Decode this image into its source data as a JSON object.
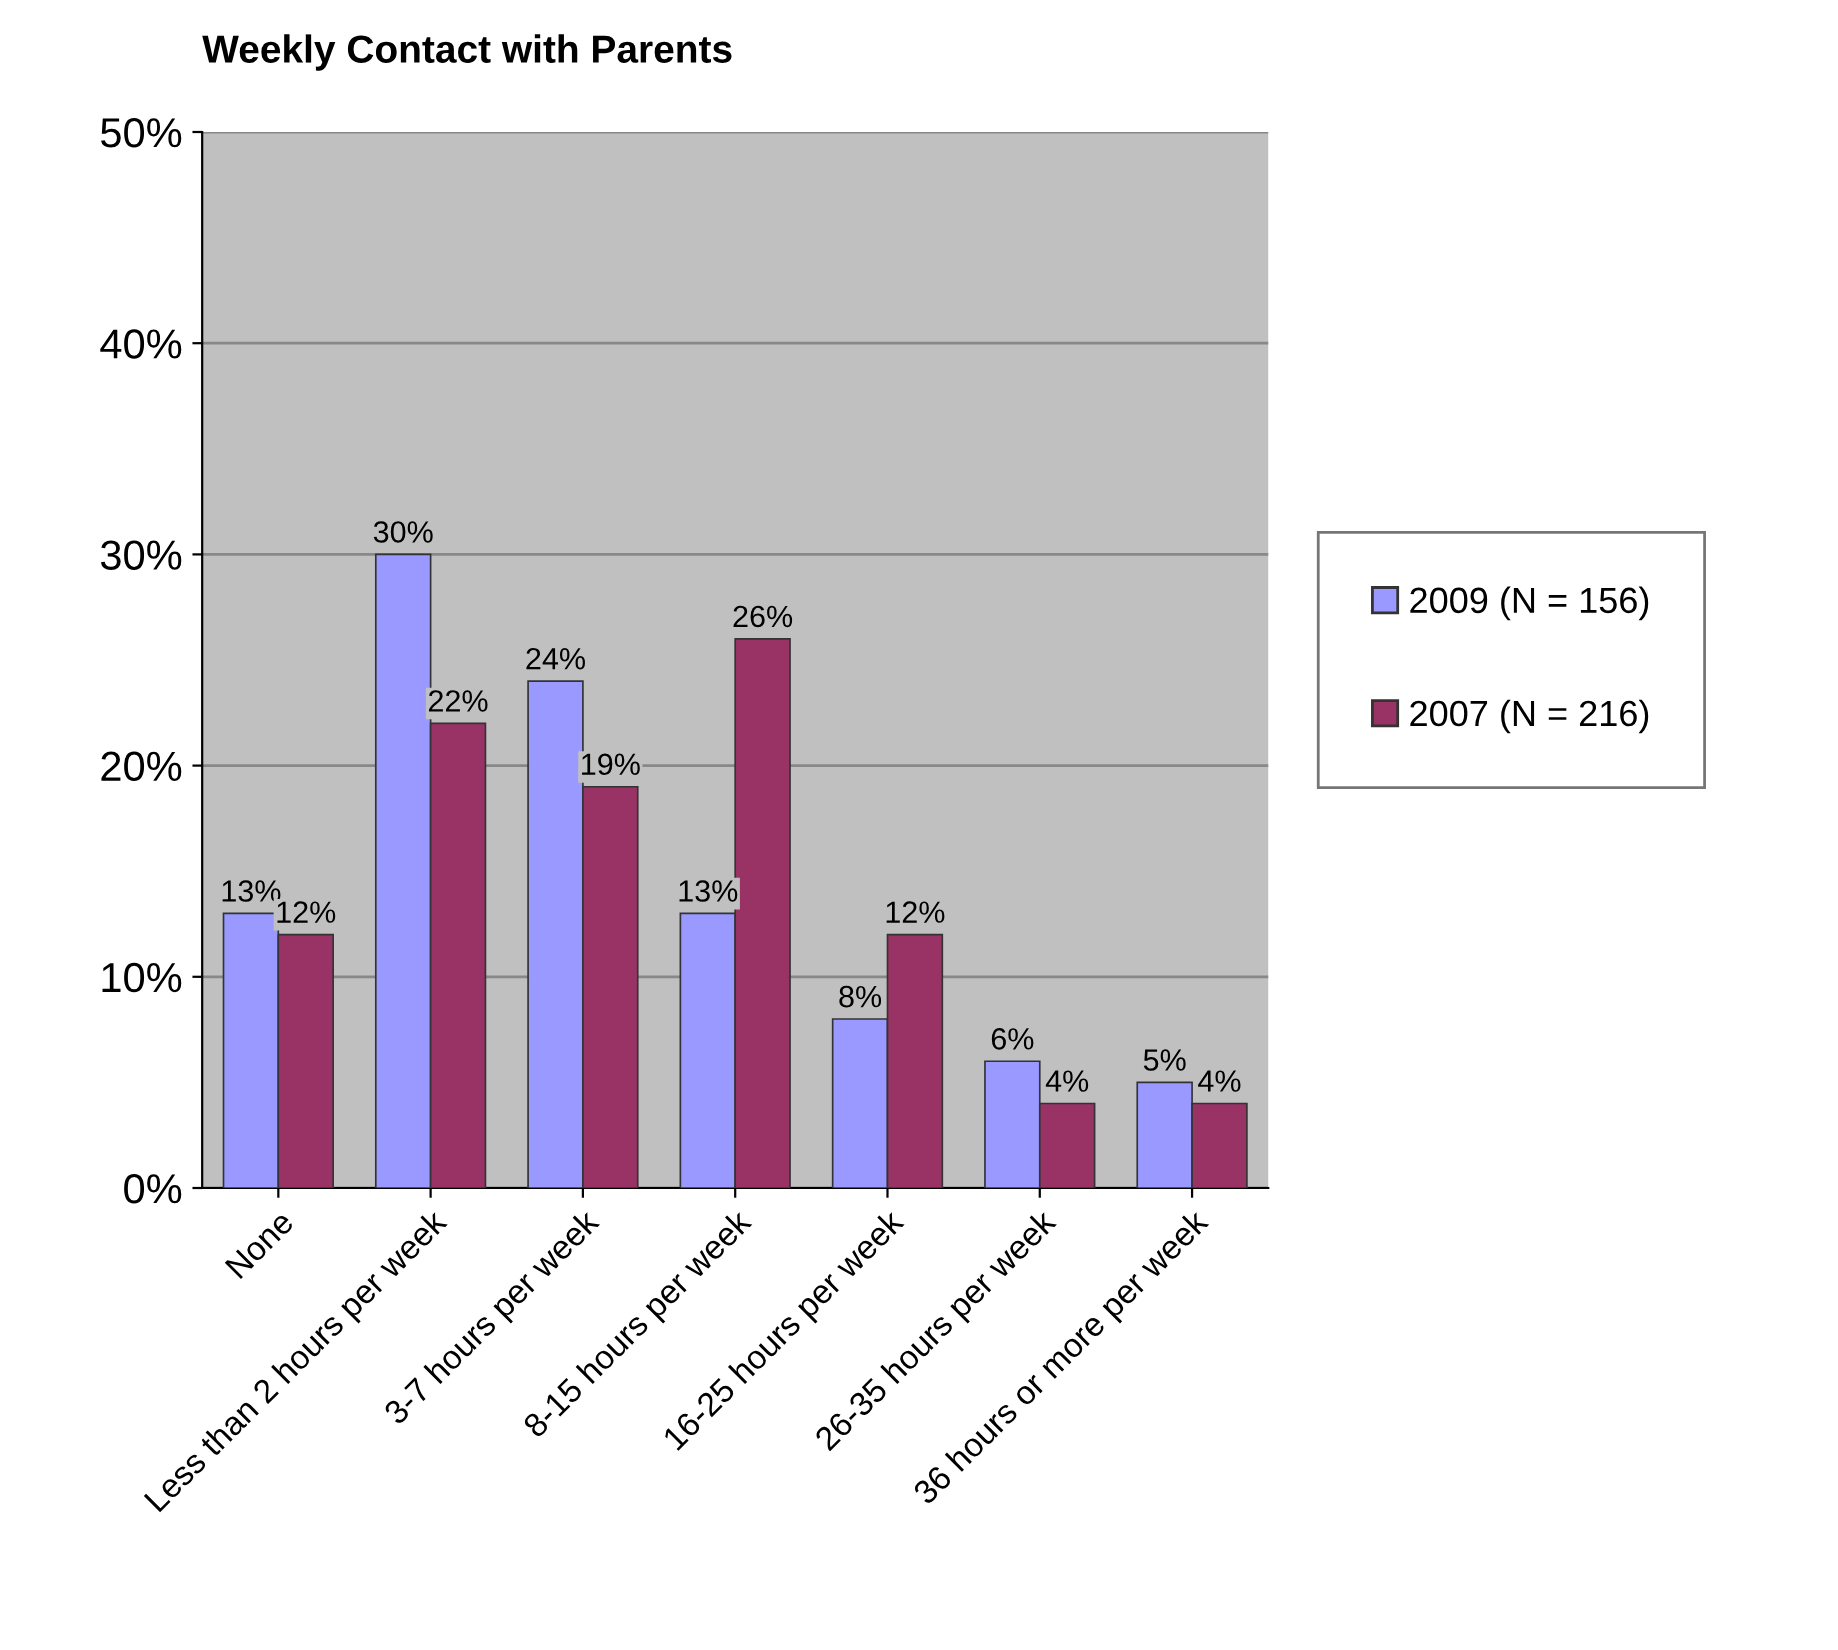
{
  "chart_data": {
    "type": "bar",
    "title": "Weekly Contact with Parents",
    "categories": [
      "None",
      "Less than 2 hours per week",
      "3-7 hours per week",
      "8-15 hours per week",
      "16-25 hours per week",
      "26-35 hours per week",
      "36 hours or more per week"
    ],
    "series": [
      {
        "name": "2009 (N = 156)",
        "color": "#9999ff",
        "values": [
          13,
          30,
          24,
          13,
          8,
          6,
          5
        ],
        "value_labels": [
          "13%",
          "30%",
          "24%",
          "13%",
          "8%",
          "6%",
          "5%"
        ]
      },
      {
        "name": "2007 (N = 216)",
        "color": "#993366",
        "values": [
          12,
          22,
          19,
          26,
          12,
          4,
          4
        ],
        "value_labels": [
          "12%",
          "22%",
          "19%",
          "26%",
          "12%",
          "4%",
          "4%"
        ]
      }
    ],
    "ylim": [
      0,
      50
    ],
    "yticks": [
      {
        "value": 0,
        "label": "0%"
      },
      {
        "value": 10,
        "label": "10%"
      },
      {
        "value": 20,
        "label": "20%"
      },
      {
        "value": 30,
        "label": "30%"
      },
      {
        "value": 40,
        "label": "40%"
      },
      {
        "value": 50,
        "label": "50%"
      }
    ],
    "grid": "y",
    "legend": "right"
  }
}
